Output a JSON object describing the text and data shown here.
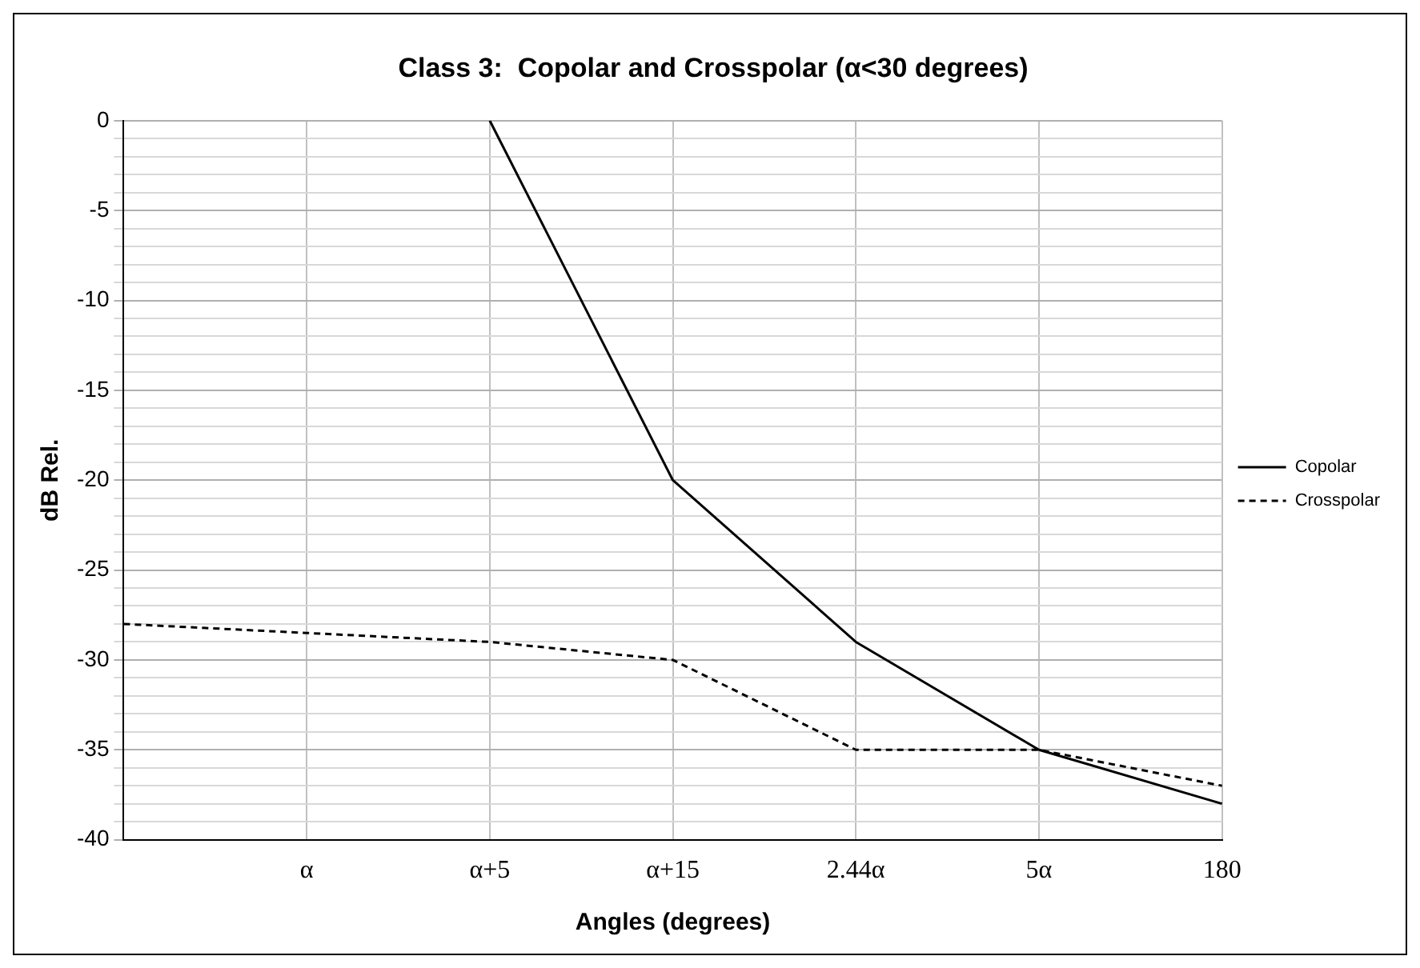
{
  "chart_data": {
    "type": "line",
    "title": "Class 3:  Copolar and Crosspolar (α<30 degrees)",
    "xlabel": "Angles (degrees)",
    "ylabel": "dB Rel.",
    "categories": [
      null,
      "α",
      "α+5",
      "α+15",
      "2.44α",
      "5α",
      "180"
    ],
    "series": [
      {
        "name": "Copolar",
        "color": "#000000",
        "line_style": "solid",
        "values": [
          null,
          null,
          0,
          -20,
          -29,
          -35,
          -38
        ]
      },
      {
        "name": "Crosspolar",
        "color": "#000000",
        "line_style": "dashed",
        "values": [
          -28,
          -28.5,
          -29,
          -30,
          -35,
          -35,
          -37
        ]
      }
    ],
    "ylim": [
      -40,
      0
    ],
    "yticks": [
      -40,
      {
        "value": -39,
        "label": null
      },
      {
        "value": -38,
        "label": null
      },
      {
        "value": -37,
        "label": null
      },
      {
        "value": -36,
        "label": null
      },
      -35,
      {
        "value": -34,
        "label": null
      },
      {
        "value": -33,
        "label": null
      },
      {
        "value": -32,
        "label": null
      },
      {
        "value": -31,
        "label": null
      },
      -30,
      {
        "value": -29,
        "label": null
      },
      {
        "value": -28,
        "label": null
      },
      {
        "value": -27,
        "label": null
      },
      {
        "value": -26,
        "label": null
      },
      -25,
      {
        "value": -24,
        "label": null
      },
      {
        "value": -23,
        "label": null
      },
      {
        "value": -22,
        "label": null
      },
      {
        "value": -21,
        "label": null
      },
      -20,
      {
        "value": -19,
        "label": null
      },
      {
        "value": -18,
        "label": null
      },
      {
        "value": -17,
        "label": null
      },
      {
        "value": -16,
        "label": null
      },
      -15,
      {
        "value": -14,
        "label": null
      },
      {
        "value": -13,
        "label": null
      },
      {
        "value": -12,
        "label": null
      },
      {
        "value": -11,
        "label": null
      },
      -10,
      {
        "value": -9,
        "label": null
      },
      {
        "value": -8,
        "label": null
      },
      {
        "value": -7,
        "label": null
      },
      {
        "value": -6,
        "label": null
      },
      -5,
      {
        "value": -4,
        "label": null
      },
      {
        "value": -3,
        "label": null
      },
      {
        "value": -2,
        "label": null
      },
      {
        "value": -1,
        "label": null
      },
      0
    ],
    "grid": true,
    "legend": "right",
    "marker": "none"
  }
}
